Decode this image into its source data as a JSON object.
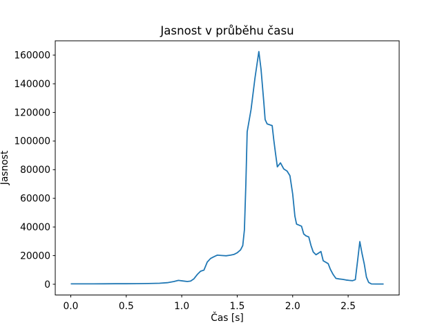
{
  "chart_data": {
    "type": "line",
    "title": "Jasnost v průběhu času",
    "xlabel": "Čas [s]",
    "ylabel": "Jasnost",
    "grid": false,
    "legend": null,
    "line_color": "#1f77b4",
    "background": "#ffffff",
    "text_color": "#000000",
    "xlim": [
      -0.14,
      2.96
    ],
    "ylim": [
      -7500,
      170000
    ],
    "x_ticks": [
      0.0,
      0.5,
      1.0,
      1.5,
      2.0,
      2.5
    ],
    "x_tick_labels": [
      "0.0",
      "0.5",
      "1.0",
      "1.5",
      "2.0",
      "2.5"
    ],
    "y_ticks": [
      0,
      20000,
      40000,
      60000,
      80000,
      100000,
      120000,
      140000,
      160000
    ],
    "y_tick_labels": [
      "0",
      "20000",
      "40000",
      "60000",
      "80000",
      "100000",
      "120000",
      "140000",
      "160000"
    ],
    "series": [
      {
        "name": "jasnost",
        "points": [
          [
            0.0,
            300
          ],
          [
            0.1,
            300
          ],
          [
            0.2,
            300
          ],
          [
            0.3,
            320
          ],
          [
            0.4,
            350
          ],
          [
            0.5,
            380
          ],
          [
            0.6,
            430
          ],
          [
            0.7,
            520
          ],
          [
            0.8,
            700
          ],
          [
            0.87,
            1100
          ],
          [
            0.93,
            1900
          ],
          [
            0.97,
            2700
          ],
          [
            1.01,
            2300
          ],
          [
            1.05,
            1900
          ],
          [
            1.08,
            2200
          ],
          [
            1.11,
            3800
          ],
          [
            1.14,
            6800
          ],
          [
            1.17,
            9100
          ],
          [
            1.2,
            9900
          ],
          [
            1.23,
            15500
          ],
          [
            1.26,
            18000
          ],
          [
            1.29,
            19200
          ],
          [
            1.32,
            20300
          ],
          [
            1.36,
            20100
          ],
          [
            1.4,
            19900
          ],
          [
            1.44,
            20300
          ],
          [
            1.47,
            20800
          ],
          [
            1.5,
            22000
          ],
          [
            1.53,
            24000
          ],
          [
            1.55,
            27000
          ],
          [
            1.565,
            38000
          ],
          [
            1.578,
            70000
          ],
          [
            1.59,
            106500
          ],
          [
            1.625,
            122000
          ],
          [
            1.66,
            144000
          ],
          [
            1.695,
            162500
          ],
          [
            1.715,
            150000
          ],
          [
            1.74,
            127000
          ],
          [
            1.752,
            115000
          ],
          [
            1.77,
            112000
          ],
          [
            1.815,
            110800
          ],
          [
            1.83,
            100500
          ],
          [
            1.845,
            91500
          ],
          [
            1.862,
            82000
          ],
          [
            1.89,
            84800
          ],
          [
            1.92,
            80500
          ],
          [
            1.95,
            79000
          ],
          [
            1.975,
            75800
          ],
          [
            2.0,
            63000
          ],
          [
            2.02,
            47500
          ],
          [
            2.035,
            42000
          ],
          [
            2.06,
            41200
          ],
          [
            2.08,
            40500
          ],
          [
            2.1,
            35100
          ],
          [
            2.12,
            33800
          ],
          [
            2.145,
            33000
          ],
          [
            2.165,
            27100
          ],
          [
            2.185,
            22600
          ],
          [
            2.21,
            20600
          ],
          [
            2.235,
            21800
          ],
          [
            2.255,
            22900
          ],
          [
            2.275,
            16400
          ],
          [
            2.3,
            15300
          ],
          [
            2.32,
            14400
          ],
          [
            2.34,
            10400
          ],
          [
            2.365,
            6800
          ],
          [
            2.39,
            4100
          ],
          [
            2.42,
            3700
          ],
          [
            2.45,
            3400
          ],
          [
            2.48,
            3000
          ],
          [
            2.51,
            2700
          ],
          [
            2.54,
            2500
          ],
          [
            2.565,
            3200
          ],
          [
            2.585,
            16500
          ],
          [
            2.605,
            29800
          ],
          [
            2.625,
            21500
          ],
          [
            2.645,
            14300
          ],
          [
            2.665,
            5000
          ],
          [
            2.685,
            1300
          ],
          [
            2.71,
            250
          ],
          [
            2.75,
            200
          ],
          [
            2.79,
            200
          ],
          [
            2.82,
            200
          ]
        ]
      }
    ]
  }
}
